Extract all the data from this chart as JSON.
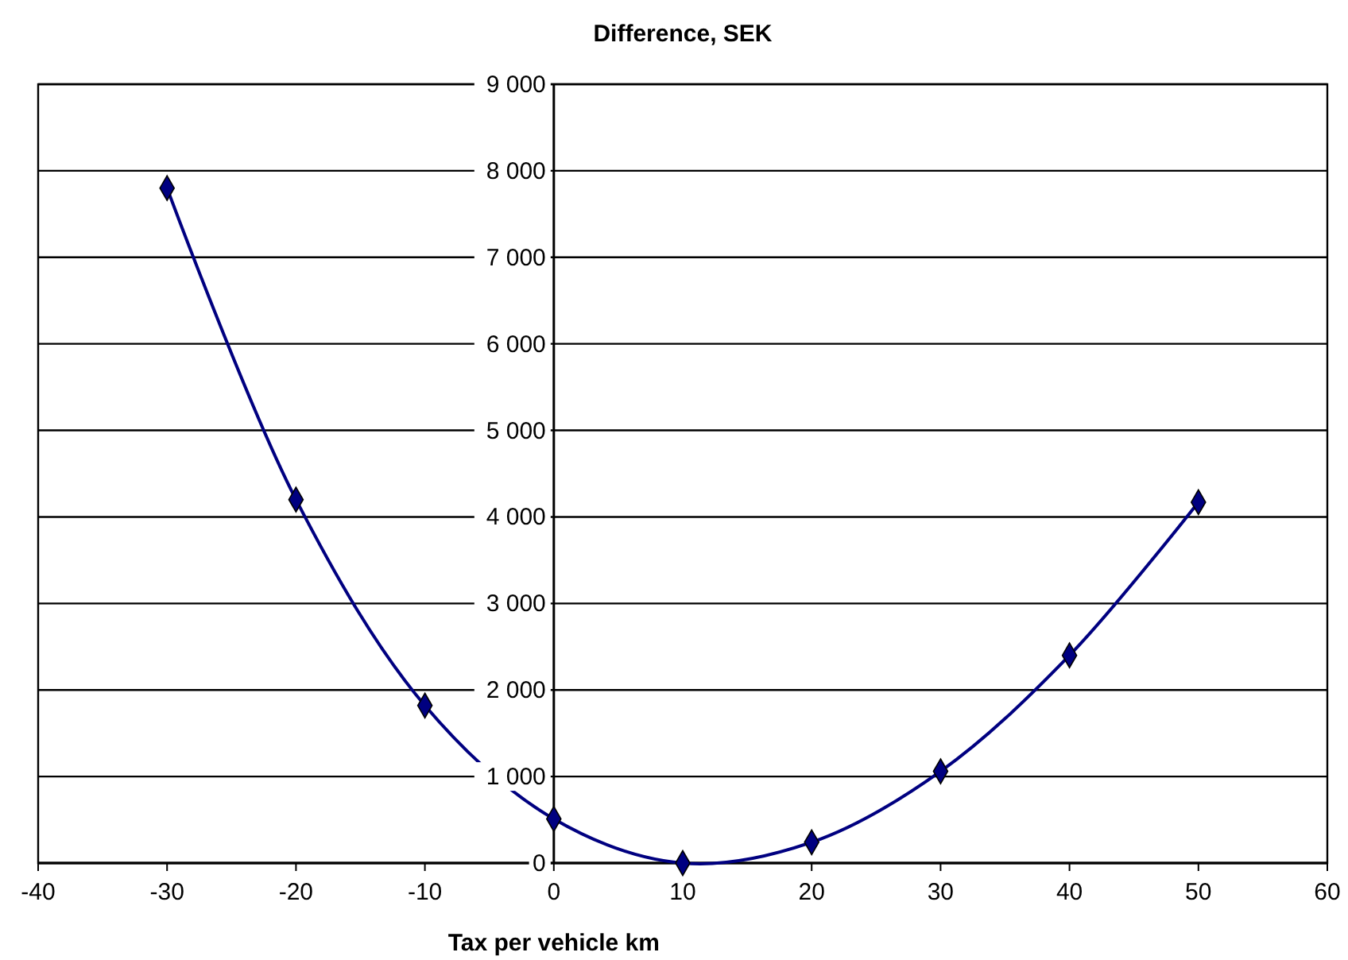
{
  "chart_data": {
    "type": "line",
    "title": "Difference, SEK",
    "xlabel": "Tax per vehicle km",
    "x": [
      -30,
      -20,
      -10,
      0,
      10,
      20,
      30,
      40,
      50
    ],
    "series": [
      {
        "color": "#000080",
        "values": [
          7800,
          4200,
          1820,
          510,
          0,
          240,
          1060,
          2400,
          4170
        ]
      }
    ],
    "xlim": [
      -40,
      60
    ],
    "xticks": [
      -40,
      -30,
      -20,
      -10,
      0,
      10,
      20,
      30,
      40,
      50,
      60
    ],
    "ylim": [
      0,
      9000
    ],
    "yticks": [
      {
        "value": 0,
        "label": "0"
      },
      {
        "value": 1000,
        "label": "1 000"
      },
      {
        "value": 2000,
        "label": "2 000"
      },
      {
        "value": 3000,
        "label": "3 000"
      },
      {
        "value": 4000,
        "label": "4 000"
      },
      {
        "value": 5000,
        "label": "5 000"
      },
      {
        "value": 6000,
        "label": "6 000"
      },
      {
        "value": 7000,
        "label": "7 000"
      },
      {
        "value": 8000,
        "label": "8 000"
      },
      {
        "value": 9000,
        "label": "9 000"
      }
    ],
    "grid": "y",
    "marker": "diamond",
    "line_style": "solid"
  }
}
